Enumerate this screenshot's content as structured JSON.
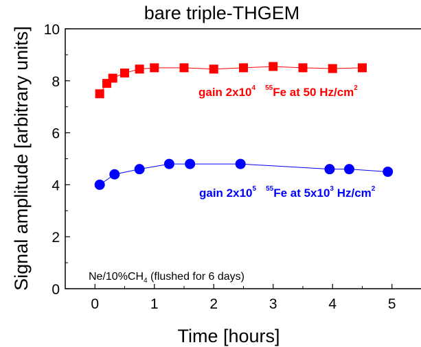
{
  "chart_data": {
    "type": "line",
    "title": "bare triple-THGEM",
    "xlabel": "Time [hours]",
    "ylabel": "Signal amplitude [arbitrary units]",
    "xlim": [
      -0.5,
      5.5
    ],
    "ylim": [
      0,
      10
    ],
    "xticks": [
      "0",
      "1",
      "2",
      "3",
      "4",
      "5"
    ],
    "yticks": [
      "0",
      "2",
      "4",
      "6",
      "8",
      "10"
    ],
    "grid": false,
    "series": [
      {
        "color": "#ff0000",
        "marker": "square",
        "x": [
          0.08,
          0.2,
          0.3,
          0.5,
          0.75,
          1.0,
          1.5,
          2.0,
          2.5,
          3.0,
          3.5,
          4.0,
          4.5
        ],
        "y": [
          7.5,
          7.9,
          8.1,
          8.3,
          8.45,
          8.5,
          8.5,
          8.45,
          8.5,
          8.55,
          8.5,
          8.47,
          8.5
        ]
      },
      {
        "color": "#0000ff",
        "marker": "circle",
        "x": [
          0.08,
          0.33,
          0.75,
          1.25,
          1.6,
          2.45,
          3.95,
          4.28,
          4.93
        ],
        "y": [
          4.0,
          4.4,
          4.6,
          4.8,
          4.8,
          4.8,
          4.6,
          4.6,
          4.5
        ]
      }
    ],
    "annotations": {
      "red": {
        "gain_prefix": "gain 2x10",
        "gain_exp": "4",
        "iso_mass": "55",
        "source_text": "Fe at 50 Hz/cm",
        "source_exp": "2"
      },
      "blue": {
        "gain_prefix": "gain 2x10",
        "gain_exp": "5",
        "iso_mass": "55",
        "source_text_a": "Fe at 5x10",
        "source_exp_a": "3",
        "source_text_b": " Hz/cm",
        "source_exp_b": "2"
      },
      "gas": {
        "text_a": "Ne/10%CH",
        "sub": "4",
        "text_b": " (flushed for 6 days)"
      }
    }
  }
}
